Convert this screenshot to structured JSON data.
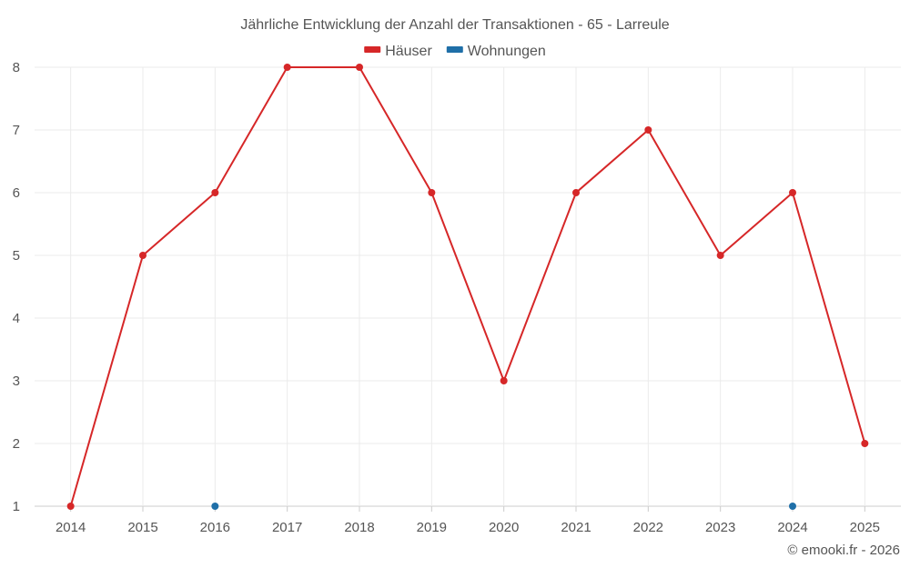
{
  "chart_data": {
    "type": "line",
    "title": "Jährliche Entwicklung der Anzahl der Transaktionen - 65 - Larreule",
    "categories": [
      "2014",
      "2015",
      "2016",
      "2017",
      "2018",
      "2019",
      "2020",
      "2021",
      "2022",
      "2023",
      "2024",
      "2025"
    ],
    "series": [
      {
        "name": "Häuser",
        "color": "#d62728",
        "values": [
          1,
          5,
          6,
          8,
          8,
          6,
          3,
          6,
          7,
          5,
          6,
          2
        ]
      },
      {
        "name": "Wohnungen",
        "color": "#1f6fa8",
        "values": [
          null,
          null,
          1,
          null,
          null,
          null,
          null,
          null,
          null,
          null,
          1,
          null
        ]
      }
    ],
    "ylim": [
      1,
      8
    ],
    "yticks": [
      1,
      2,
      3,
      4,
      5,
      6,
      7,
      8
    ],
    "grid": true,
    "legend_position": "top-center"
  },
  "credit": "© emooki.fr - 2026"
}
